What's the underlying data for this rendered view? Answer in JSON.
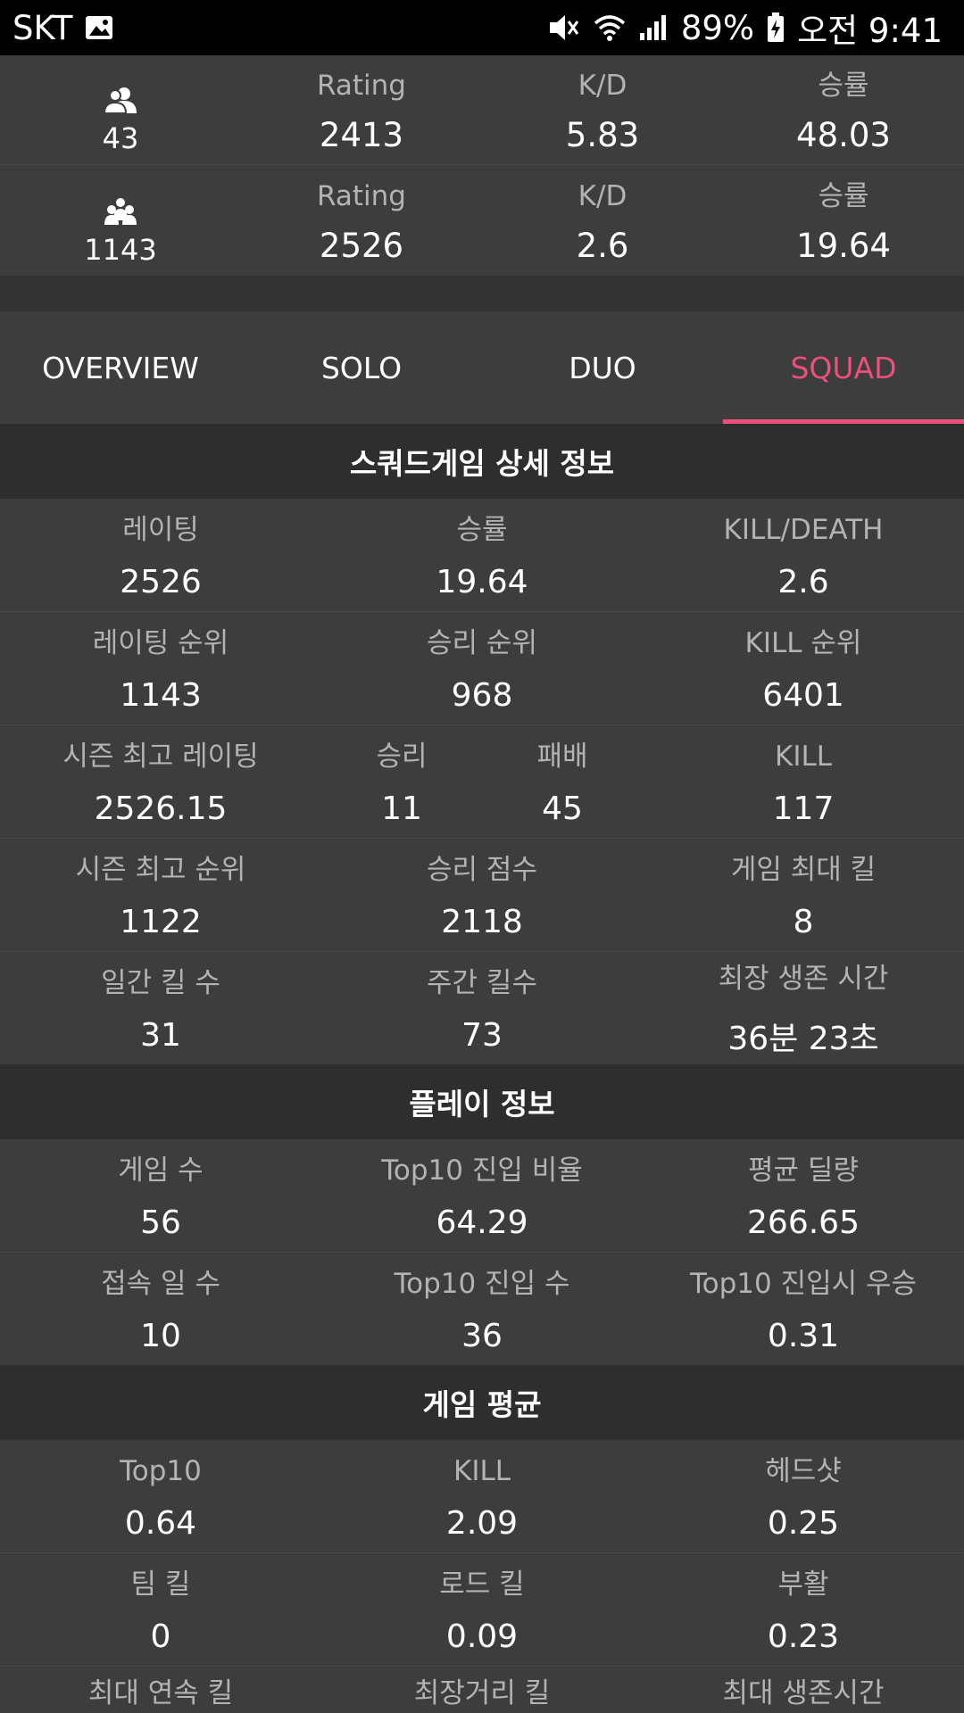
{
  "status_bar": {
    "carrier": "SKT",
    "battery": "89%",
    "time": "오전 9:41"
  },
  "summary": [
    {
      "rank": "43",
      "icon": "duo-icon",
      "rating_label": "Rating",
      "rating": "2413",
      "kd_label": "K/D",
      "kd": "5.83",
      "win_label": "승률",
      "win": "48.03"
    },
    {
      "rank": "1143",
      "icon": "squad-icon",
      "rating_label": "Rating",
      "rating": "2526",
      "kd_label": "K/D",
      "kd": "2.6",
      "win_label": "승률",
      "win": "19.64"
    }
  ],
  "tabs": [
    "OVERVIEW",
    "SOLO",
    "DUO",
    "SQUAD"
  ],
  "active_tab": "SQUAD",
  "colors": {
    "accent": "#ec4f7c",
    "background": "#3d3d3d",
    "header": "#2e2e2e"
  },
  "sections": {
    "detail_title": "스쿼드게임 상세 정보",
    "play_title": "플레이 정보",
    "avg_title": "게임 평균"
  },
  "detail": {
    "rating_label": "레이팅",
    "rating": "2526",
    "winrate_label": "승률",
    "winrate": "19.64",
    "kd_label": "KILL/DEATH",
    "kd": "2.6",
    "rating_rank_label": "레이팅 순위",
    "rating_rank": "1143",
    "win_rank_label": "승리 순위",
    "win_rank": "968",
    "kill_rank_label": "KILL 순위",
    "kill_rank": "6401",
    "season_best_rating_label": "시즌 최고 레이팅",
    "season_best_rating": "2526.15",
    "wins_label": "승리",
    "wins": "11",
    "losses_label": "패배",
    "losses": "45",
    "kills_label": "KILL",
    "kills": "117",
    "season_best_rank_label": "시즌 최고 순위",
    "season_best_rank": "1122",
    "win_points_label": "승리 점수",
    "win_points": "2118",
    "max_kills_label": "게임 최대 킬",
    "max_kills": "8",
    "daily_kills_label": "일간 킬 수",
    "daily_kills": "31",
    "weekly_kills_label": "주간 킬수",
    "weekly_kills": "73",
    "longest_survival_label": "최장 생존 시간",
    "longest_survival": "36분 23초"
  },
  "play": {
    "games_label": "게임 수",
    "games": "56",
    "top10_ratio_label": "Top10 진입 비율",
    "top10_ratio": "64.29",
    "avg_damage_label": "평균 딜량",
    "avg_damage": "266.65",
    "days_label": "접속 일 수",
    "days": "10",
    "top10_count_label": "Top10 진입 수",
    "top10_count": "36",
    "top10_win_label": "Top10 진입시 우승",
    "top10_win": "0.31"
  },
  "average": {
    "top10_label": "Top10",
    "top10": "0.64",
    "kill_label": "KILL",
    "kill": "2.09",
    "headshot_label": "헤드샷",
    "headshot": "0.25",
    "team_kill_label": "팀 킬",
    "team_kill": "0",
    "road_kill_label": "로드 킬",
    "road_kill": "0.09",
    "revive_label": "부활",
    "revive": "0.23",
    "max_streak_label": "최대 연속 킬",
    "longest_kill_label": "최장거리 킬",
    "max_survival_label": "최대 생존시간"
  }
}
